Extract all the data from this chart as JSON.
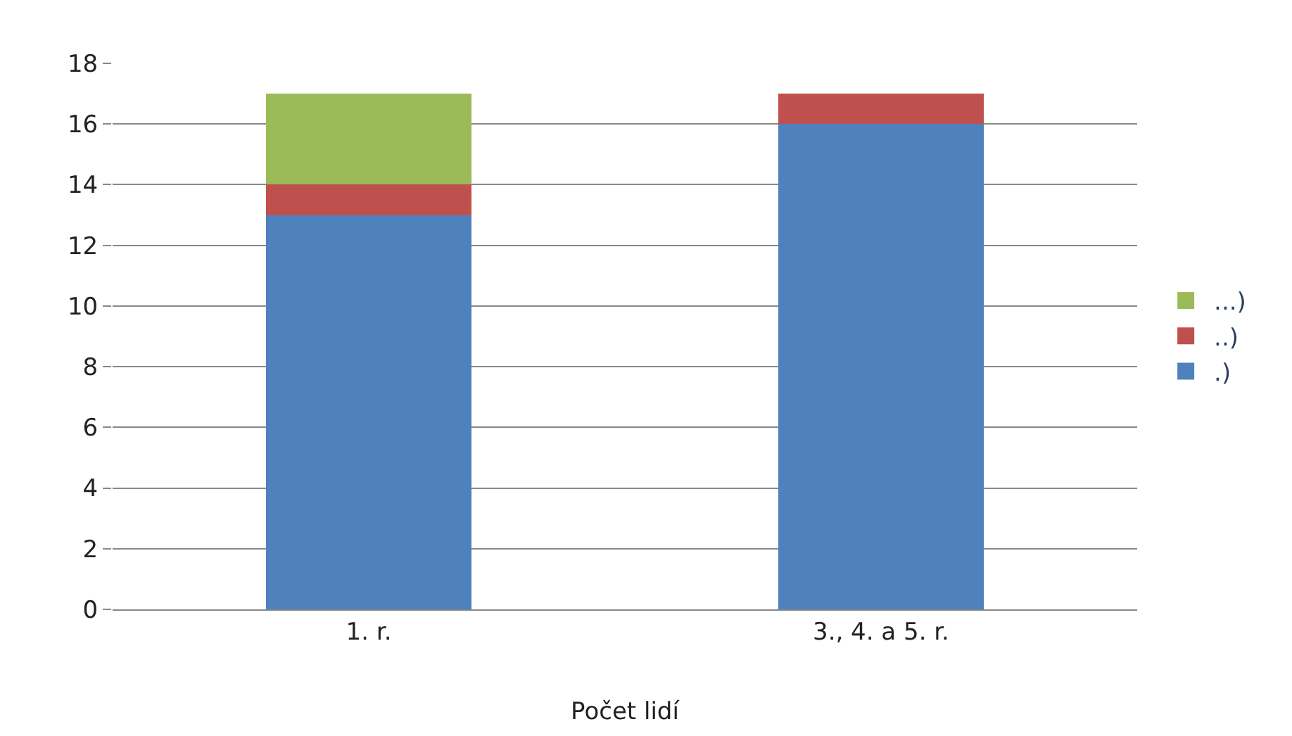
{
  "chart_data": {
    "type": "bar",
    "stacked": true,
    "xlabel": "Počet lidí",
    "categories": [
      "1. r.",
      "3., 4. a 5. r."
    ],
    "series": [
      {
        "name": ".)",
        "color": "#4f81bd",
        "values": [
          13,
          16
        ]
      },
      {
        "name": "..)",
        "color": "#c0504d",
        "values": [
          1,
          1
        ]
      },
      {
        "name": "...)",
        "color": "#9bbb59",
        "values": [
          3,
          0
        ]
      }
    ],
    "ylim": [
      0,
      18
    ],
    "yticks": [
      0,
      2,
      4,
      6,
      8,
      10,
      12,
      14,
      16,
      18
    ],
    "grid": "y",
    "legend": "right"
  }
}
